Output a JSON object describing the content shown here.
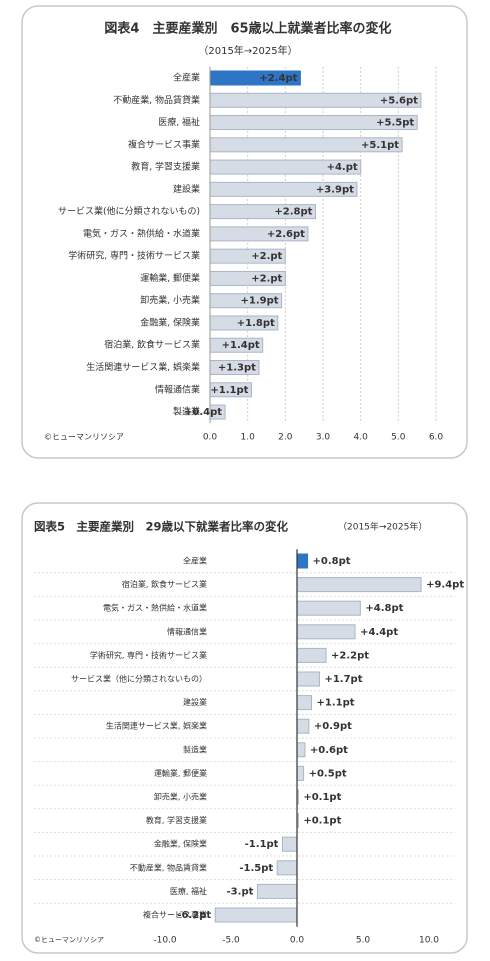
{
  "chart_data": [
    {
      "type": "bar",
      "orientation": "horizontal",
      "title": "図表4　主要産業別　65歳以上就業者比率の変化",
      "subtitle": "（2015年→2025年）",
      "source": "©ヒューマンリソシア",
      "categories": [
        "全産業",
        "不動産業, 物品賃貸業",
        "医療, 福祉",
        "複合サービス事業",
        "教育, 学習支援業",
        "建設業",
        "サービス業(他に分類されないもの)",
        "電気・ガス・熱供給・水道業",
        "学術研究, 専門・技術サービス業",
        "運輸業, 郵便業",
        "卸売業, 小売業",
        "金融業, 保険業",
        "宿泊業, 飲食サービス業",
        "生活関連サービス業, 娯楽業",
        "情報通信業",
        "製造業"
      ],
      "values": [
        2.4,
        5.6,
        5.5,
        5.1,
        4,
        3.9,
        2.8,
        2.6,
        2,
        2,
        1.9,
        1.8,
        1.4,
        1.3,
        1.1,
        0.4
      ],
      "value_labels": [
        "+2.4pt",
        "+5.6pt",
        "+5.5pt",
        "+5.1pt",
        "+4.pt",
        "+3.9pt",
        "+2.8pt",
        "+2.6pt",
        "+2.pt",
        "+2.pt",
        "+1.9pt",
        "+1.8pt",
        "+1.4pt",
        "+1.3pt",
        "+1.1pt",
        "+0.4pt"
      ],
      "colors": [
        "#2e75c6",
        "#d6dce5",
        "#d6dce5",
        "#d6dce5",
        "#d6dce5",
        "#d6dce5",
        "#d6dce5",
        "#d6dce5",
        "#d6dce5",
        "#d6dce5",
        "#d6dce5",
        "#d6dce5",
        "#d6dce5",
        "#d6dce5",
        "#d6dce5",
        "#d6dce5"
      ],
      "xlim": [
        0,
        6
      ],
      "xticks": [
        {
          "value": 0,
          "label": "0.0"
        },
        {
          "value": 1,
          "label": "1.0"
        },
        {
          "value": 2,
          "label": "2.0"
        },
        {
          "value": 3,
          "label": "3.0"
        },
        {
          "value": 4,
          "label": "4.0"
        },
        {
          "value": 5,
          "label": "5.0"
        },
        {
          "value": 6,
          "label": "6.0"
        }
      ],
      "grid": true
    },
    {
      "type": "bar",
      "orientation": "horizontal",
      "title": "図表5　主要産業別　29歳以下就業者比率の変化",
      "subtitle": "（2015年→2025年）",
      "source": "©ヒューマンリソシア",
      "categories": [
        "全産業",
        "宿泊業, 飲食サービス業",
        "電気・ガス・熱供給・水道業",
        "情報通信業",
        "学術研究, 専門・技術サービス業",
        "サービス業（他に分類されないもの）",
        "建設業",
        "生活関連サービス業, 娯楽業",
        "製造業",
        "運輸業, 郵便業",
        "卸売業, 小売業",
        "教育, 学習支援業",
        "金融業, 保険業",
        "不動産業, 物品賃貸業",
        "医療, 福祉",
        "複合サービス事業"
      ],
      "values": [
        0.8,
        9.4,
        4.8,
        4.4,
        2.2,
        1.7,
        1.1,
        0.9,
        0.6,
        0.5,
        0.1,
        0.1,
        -1.1,
        -1.5,
        -3,
        -6.2
      ],
      "value_labels": [
        "+0.8pt",
        "+9.4pt",
        "+4.8pt",
        "+4.4pt",
        "+2.2pt",
        "+1.7pt",
        "+1.1pt",
        "+0.9pt",
        "+0.6pt",
        "+0.5pt",
        "+0.1pt",
        "+0.1pt",
        "-1.1pt",
        "-1.5pt",
        "-3.pt",
        "-6.2pt"
      ],
      "colors": [
        "#2e75c6",
        "#d6dce5",
        "#d6dce5",
        "#d6dce5",
        "#d6dce5",
        "#d6dce5",
        "#d6dce5",
        "#d6dce5",
        "#d6dce5",
        "#d6dce5",
        "#d6dce5",
        "#d6dce5",
        "#d6dce5",
        "#d6dce5",
        "#d6dce5",
        "#d6dce5"
      ],
      "xlim": [
        -10,
        10
      ],
      "xticks": [
        {
          "value": -10,
          "label": "-10.0"
        },
        {
          "value": -5,
          "label": "-5.0"
        },
        {
          "value": 0,
          "label": "0.0"
        },
        {
          "value": 5,
          "label": "5.0"
        },
        {
          "value": 10,
          "label": "10.0"
        }
      ],
      "grid": false
    }
  ]
}
